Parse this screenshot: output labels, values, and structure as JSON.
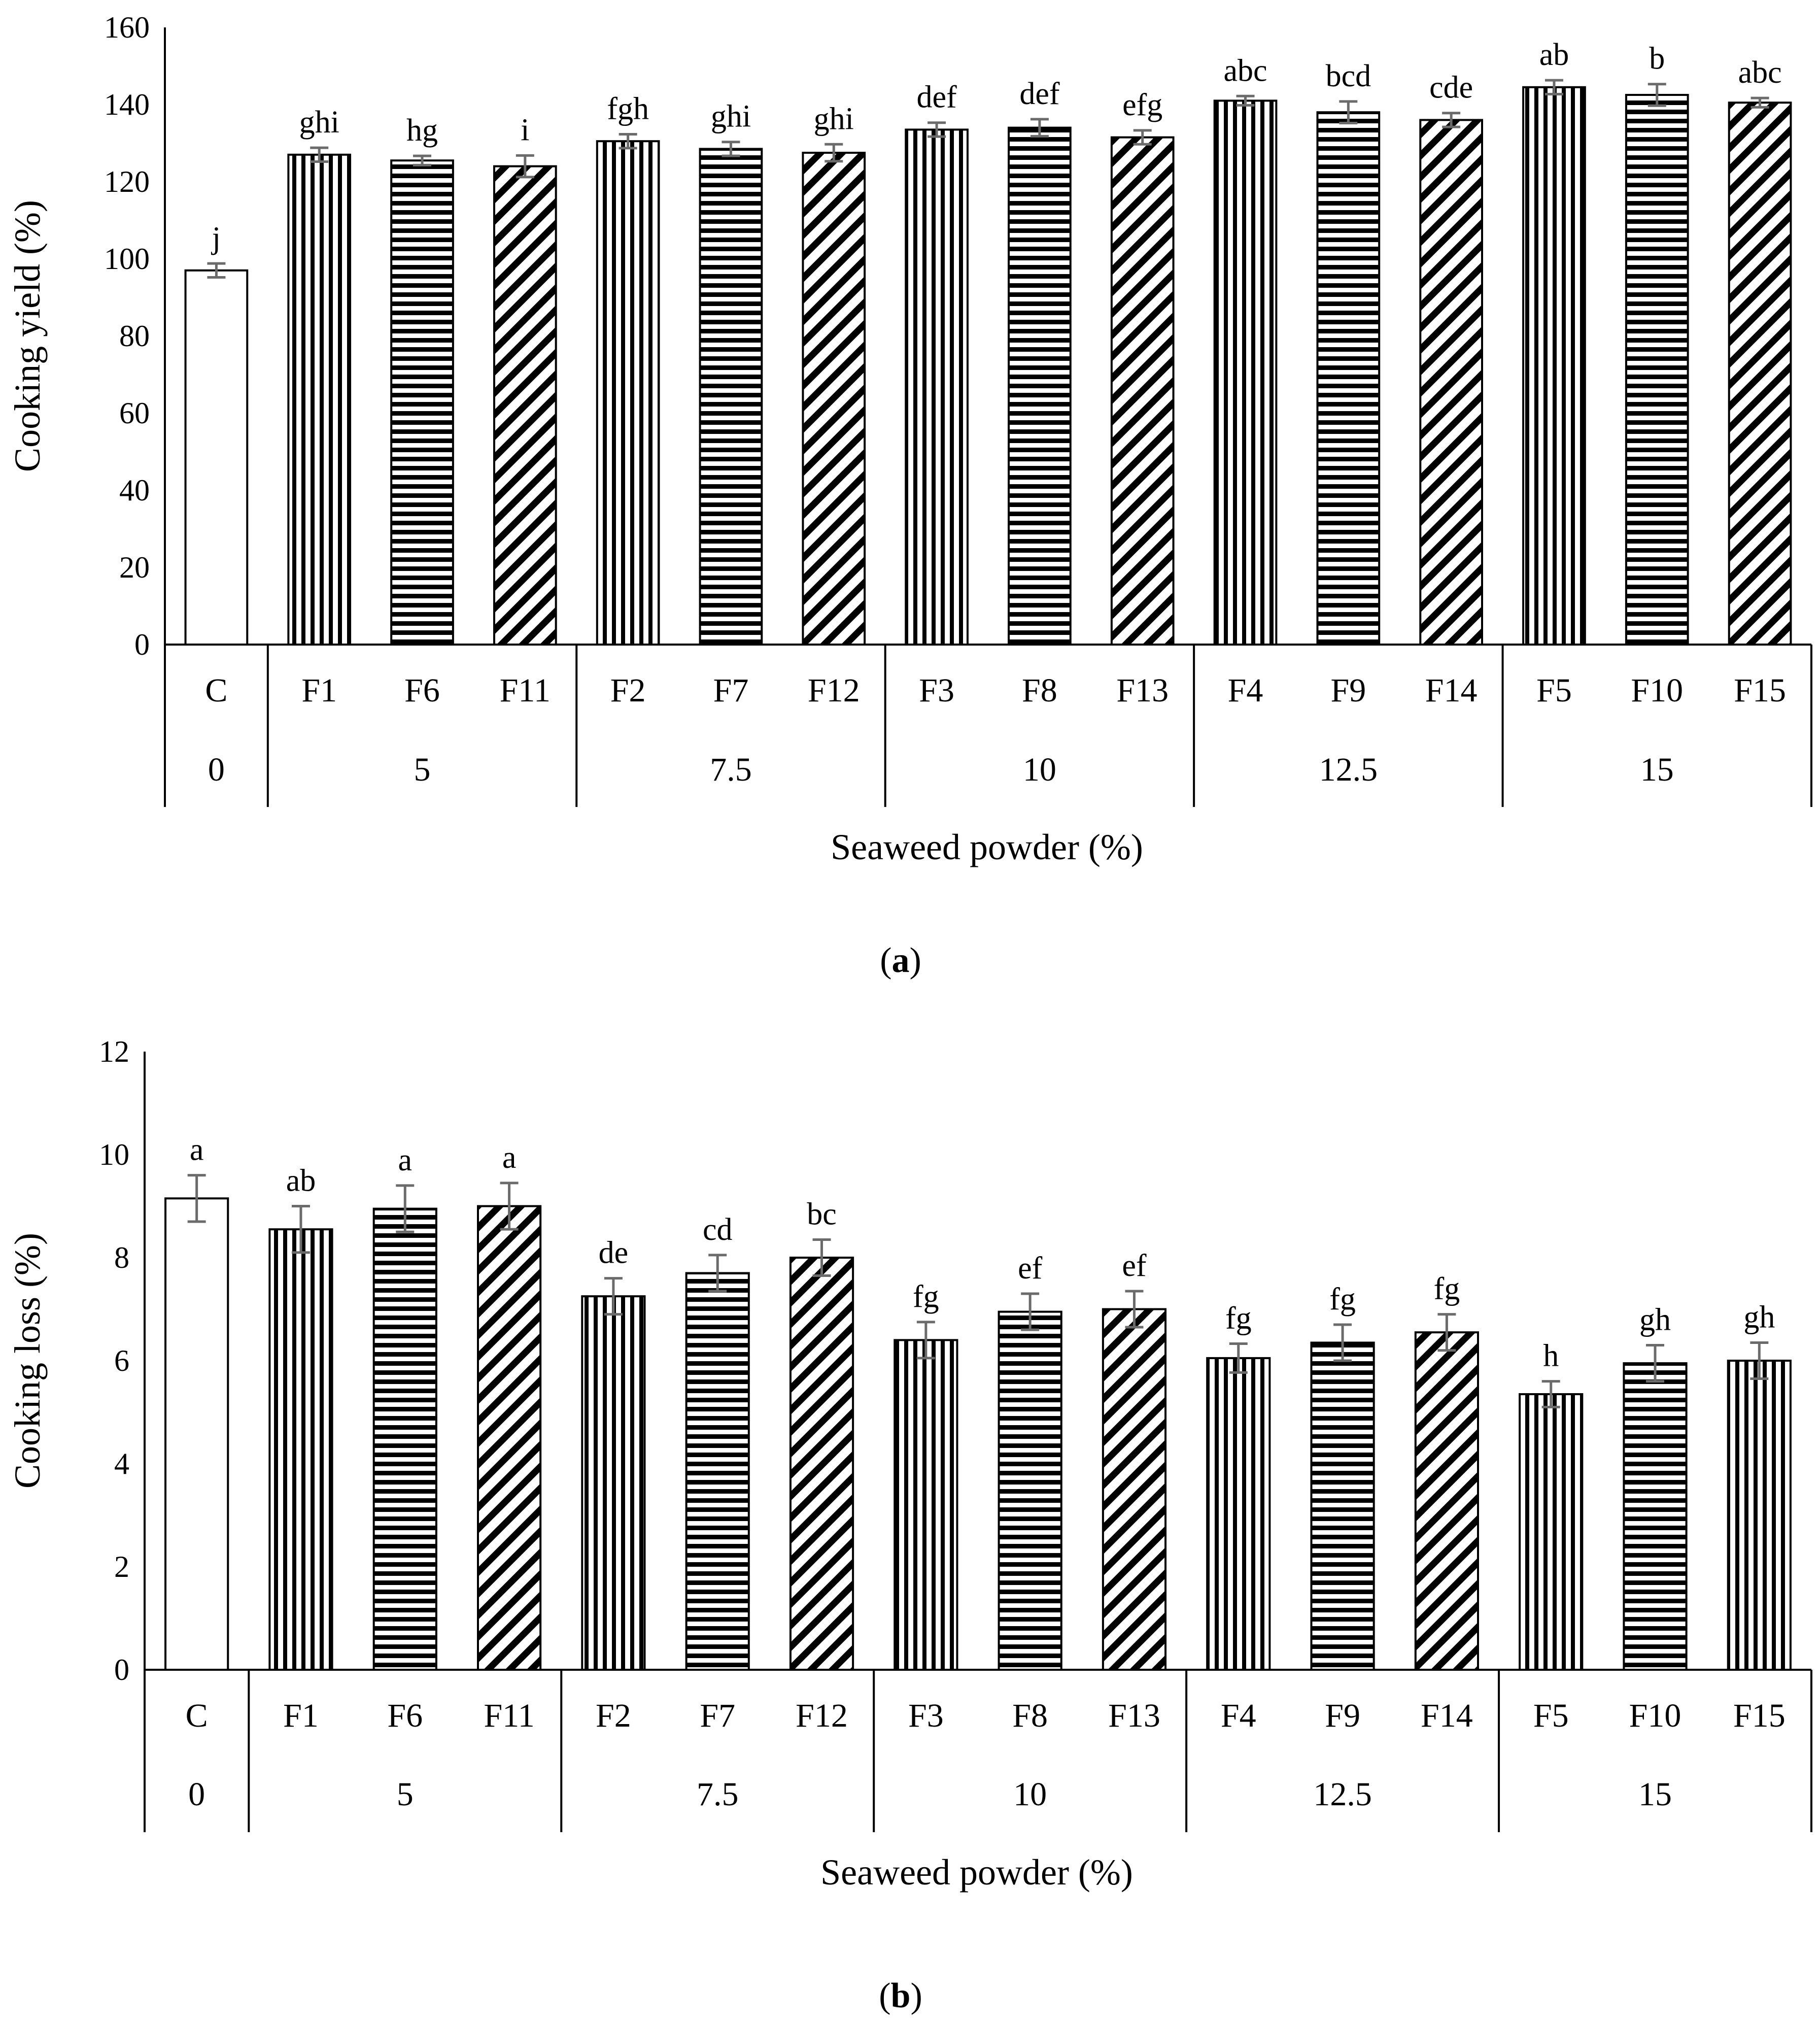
{
  "colors": {
    "bar_stroke": "#000000",
    "bar_fill": "#ffffff",
    "pattern_ink": "#000000",
    "error_bar": "#6b6b6b",
    "axis": "#000000"
  },
  "chart_data": [
    {
      "type": "bar",
      "panel_label": {
        "open": "(",
        "letter": "a",
        "close": ")"
      },
      "ylabel": "Cooking yield (%)",
      "xlabel": "Seaweed powder (%)",
      "ylim": [
        0,
        160
      ],
      "yticks": [
        "0",
        "20",
        "40",
        "60",
        "80",
        "100",
        "120",
        "140",
        "160"
      ],
      "error_tick_style": "cap",
      "categories": [
        "C",
        "F1",
        "F6",
        "F11",
        "F2",
        "F7",
        "F12",
        "F3",
        "F8",
        "F13",
        "F4",
        "F9",
        "F14",
        "F5",
        "F10",
        "F15"
      ],
      "values": [
        97,
        127,
        125.5,
        124,
        130.5,
        128.5,
        127.5,
        133.5,
        134,
        131.5,
        141,
        138,
        136,
        144.5,
        142.5,
        140.5
      ],
      "errors": [
        1.8,
        1.8,
        1.2,
        2.8,
        1.8,
        1.8,
        2.2,
        1.8,
        2.2,
        1.8,
        1.2,
        2.8,
        1.8,
        1.8,
        2.8,
        1.2
      ],
      "letters": [
        "j",
        "ghi",
        "hg",
        "i",
        "fgh",
        "ghi",
        "ghi",
        "def",
        "def",
        "efg",
        "abc",
        "bcd",
        "cde",
        "ab",
        "b",
        "abc"
      ],
      "patterns": [
        "none",
        "vertical",
        "horizontal",
        "diagonal",
        "vertical",
        "horizontal",
        "diagonal",
        "vertical",
        "horizontal",
        "diagonal",
        "vertical",
        "horizontal",
        "diagonal",
        "vertical",
        "horizontal",
        "diagonal"
      ],
      "groups": [
        {
          "label": "0",
          "count": 1
        },
        {
          "label": "5",
          "count": 3
        },
        {
          "label": "7.5",
          "count": 3
        },
        {
          "label": "10",
          "count": 3
        },
        {
          "label": "12.5",
          "count": 3
        },
        {
          "label": "15",
          "count": 3
        }
      ]
    },
    {
      "type": "bar",
      "panel_label": {
        "open": "(",
        "letter": "b",
        "close": ")"
      },
      "ylabel": "Cooking loss (%)",
      "xlabel": "Seaweed powder (%)",
      "ylim": [
        0,
        12
      ],
      "yticks": [
        "0",
        "2",
        "4",
        "6",
        "8",
        "10",
        "12"
      ],
      "error_tick_style": "cross",
      "categories": [
        "C",
        "F1",
        "F6",
        "F11",
        "F2",
        "F7",
        "F12",
        "F3",
        "F8",
        "F13",
        "F4",
        "F9",
        "F14",
        "F5",
        "F10",
        "F15"
      ],
      "values": [
        9.15,
        8.55,
        8.95,
        9.0,
        7.25,
        7.7,
        8.0,
        6.4,
        6.95,
        7.0,
        6.05,
        6.35,
        6.55,
        5.35,
        5.95,
        6.0
      ],
      "errors": [
        0.45,
        0.45,
        0.45,
        0.45,
        0.35,
        0.35,
        0.35,
        0.35,
        0.35,
        0.35,
        0.28,
        0.35,
        0.35,
        0.25,
        0.35,
        0.35
      ],
      "letters": [
        "a",
        "ab",
        "a",
        "a",
        "de",
        "cd",
        "bc",
        "fg",
        "ef",
        "ef",
        "fg",
        "fg",
        "fg",
        "h",
        "gh",
        "gh"
      ],
      "patterns": [
        "none",
        "vertical",
        "horizontal",
        "diagonal",
        "vertical",
        "horizontal",
        "diagonal",
        "vertical",
        "horizontal",
        "diagonal",
        "vertical",
        "horizontal",
        "diagonal",
        "vertical",
        "horizontal",
        "vertical"
      ],
      "groups": [
        {
          "label": "0",
          "count": 1
        },
        {
          "label": "5",
          "count": 3
        },
        {
          "label": "7.5",
          "count": 3
        },
        {
          "label": "10",
          "count": 3
        },
        {
          "label": "12.5",
          "count": 3
        },
        {
          "label": "15",
          "count": 3
        }
      ]
    }
  ]
}
